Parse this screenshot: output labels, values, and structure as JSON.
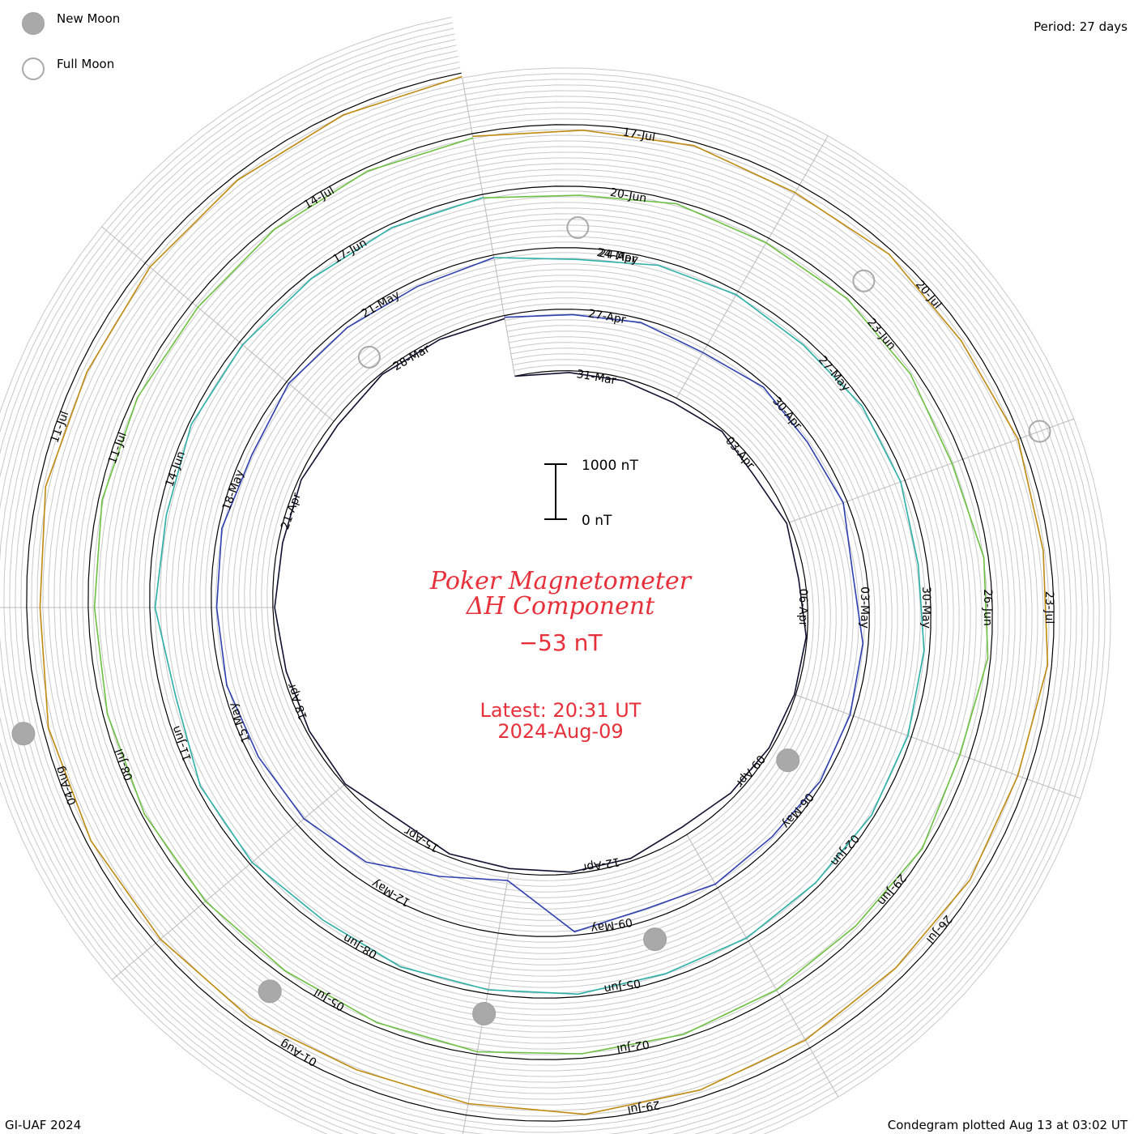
{
  "legend": {
    "new_moon_label": "New Moon",
    "full_moon_label": "Full Moon",
    "new_moon_color": "#a9a9a9",
    "full_moon_color": "#a9a9a9"
  },
  "period_label": "Period: 27 days",
  "credit_label": "GI-UAF 2024",
  "plotted_label": "Condegram plotted Aug 13 at 03:02 UT",
  "scale_bar": {
    "top_label": "1000 nT",
    "bottom_label": "0 nT"
  },
  "title": {
    "line1": "Poker Magnetometer",
    "line2": "ΔH Component"
  },
  "current_value": "−53 nT",
  "latest": {
    "time": "Latest: 20:31 UT",
    "date": "2024-Aug-09"
  },
  "colors": {
    "title": "#e8303a",
    "grid": "#c8c8c8",
    "baseline": "#000000"
  },
  "chart_data": {
    "type": "line",
    "subtype": "condegram spiral",
    "period_days": 27,
    "scale_nT": [
      0,
      1000
    ],
    "series": [
      {
        "start": "2024-03-29",
        "color": "#101030",
        "label_dates": [
          "31-Mar",
          "03-Apr",
          "06-Apr",
          "09-Apr",
          "12-Apr",
          "15-Apr",
          "18-Apr",
          "21-Apr",
          "28-Mar"
        ],
        "values": [
          0,
          40,
          60,
          120,
          40,
          180,
          60,
          140,
          20,
          30,
          50,
          110,
          200,
          60,
          40,
          90,
          70,
          220,
          30,
          60,
          80,
          40,
          100,
          60,
          120,
          30,
          50,
          70
        ]
      },
      {
        "start": "2024-04-25",
        "color": "#2e3fb0",
        "label_dates": [
          "27-Apr",
          "30-Apr",
          "03-May",
          "06-May",
          "09-May",
          "12-May",
          "15-May",
          "18-May",
          "21-May",
          "24-Apr"
        ],
        "values": [
          40,
          120,
          80,
          200,
          60,
          150,
          90,
          300,
          120,
          80,
          60,
          140,
          100,
          260,
          80,
          1200,
          900,
          400,
          200,
          160,
          90,
          120,
          80,
          200,
          60,
          100,
          140,
          60
        ]
      },
      {
        "start": "2024-05-22",
        "color": "#2ab0a8",
        "label_dates": [
          "24-May",
          "27-May",
          "30-May",
          "02-Jun",
          "05-Jun",
          "08-Jun",
          "11-Jun",
          "14-Jun",
          "17-Jun"
        ],
        "values": [
          60,
          260,
          120,
          80,
          140,
          60,
          100,
          200,
          120,
          80,
          60,
          100,
          80,
          120,
          60,
          90,
          70,
          160,
          60,
          80,
          300,
          120,
          180,
          60,
          90,
          120,
          80,
          70
        ]
      },
      {
        "start": "2024-06-18",
        "color": "#6cc040",
        "label_dates": [
          "20-Jun",
          "23-Jun",
          "26-Jun",
          "29-Jun",
          "02-Jul",
          "05-Jul",
          "08-Jul",
          "11-Jul",
          "14-Jul"
        ],
        "values": [
          80,
          200,
          60,
          120,
          90,
          140,
          260,
          100,
          60,
          220,
          80,
          160,
          120,
          80,
          100,
          60,
          90,
          120,
          80,
          60,
          100,
          140,
          80,
          90,
          160,
          120,
          80,
          100
        ]
      },
      {
        "start": "2024-07-15",
        "color": "#c08a10",
        "label_dates": [
          "17-Jul",
          "20-Jul",
          "23-Jul",
          "26-Jul",
          "29-Jul",
          "01-Aug",
          "04-Aug",
          "11-Jul"
        ],
        "values": [
          60,
          120,
          80,
          200,
          100,
          160,
          60,
          140,
          90,
          220,
          180,
          240,
          200,
          160,
          120,
          260,
          320,
          180,
          140,
          100,
          120,
          300,
          160,
          200,
          140,
          120,
          90,
          80
        ]
      }
    ],
    "new_moons": [
      "2024-04-08",
      "2024-05-08",
      "2024-06-06",
      "2024-07-05",
      "2024-08-04"
    ],
    "full_moons": [
      "2024-04-23",
      "2024-05-23",
      "2024-06-22",
      "2024-07-21"
    ],
    "grid": true
  }
}
